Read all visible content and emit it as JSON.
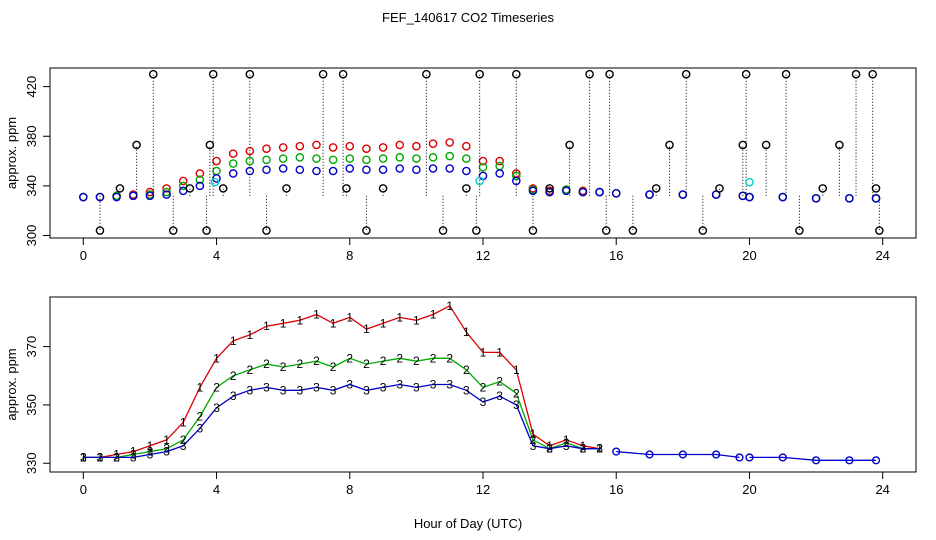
{
  "title": "FEF_140617  CO2 Timeseries",
  "xlabel": "Hour of Day (UTC)",
  "colors": {
    "s1": "#dd0000",
    "s2": "#00aa00",
    "s3": "#0000cc",
    "cyan": "#00cccc",
    "black": "#000000"
  },
  "chart_data": [
    {
      "type": "scatter",
      "ylabel": "approx. ppm",
      "xlim": [
        -1,
        25
      ],
      "ylim": [
        298,
        435
      ],
      "xticks": [
        0,
        4,
        8,
        12,
        16,
        20,
        24
      ],
      "yticks": [
        300,
        340,
        380,
        420
      ],
      "grid": false,
      "series": [
        {
          "marker": "circle",
          "color": "#dd0000",
          "x": [
            0,
            0.5,
            1,
            1.5,
            2,
            2.5,
            3,
            3.5,
            4,
            4.5,
            5,
            5.5,
            6,
            6.5,
            7,
            7.5,
            8,
            8.5,
            9,
            9.5,
            10,
            10.5,
            11,
            11.5,
            12,
            12.5,
            13,
            13.5,
            14,
            14.5,
            15,
            15.5,
            16,
            17,
            18,
            19,
            19.8,
            20,
            21,
            22,
            23,
            23.8
          ],
          "y": [
            331,
            331,
            332,
            333,
            335,
            338,
            344,
            350,
            360,
            366,
            368,
            370,
            371,
            372,
            373,
            371,
            372,
            370,
            371,
            373,
            372,
            374,
            375,
            372,
            360,
            360,
            350,
            338,
            336,
            337,
            336,
            335,
            334,
            333,
            333,
            333,
            332,
            331,
            331,
            330,
            330,
            330
          ]
        },
        {
          "marker": "circle",
          "color": "#00aa00",
          "x": [
            0,
            0.5,
            1,
            1.5,
            2,
            2.5,
            3,
            3.5,
            4,
            4.5,
            5,
            5.5,
            6,
            6.5,
            7,
            7.5,
            8,
            8.5,
            9,
            9.5,
            10,
            10.5,
            11,
            11.5,
            12,
            12.5,
            13,
            13.5,
            14,
            14.5,
            15,
            15.5,
            16,
            17,
            18,
            19,
            19.8,
            20,
            21,
            22,
            23,
            23.8
          ],
          "y": [
            331,
            331,
            332,
            332,
            333,
            335,
            340,
            345,
            352,
            358,
            360,
            361,
            362,
            363,
            362,
            361,
            362,
            361,
            362,
            363,
            362,
            363,
            364,
            362,
            355,
            356,
            348,
            337,
            335,
            337,
            335,
            335,
            334,
            333,
            333,
            333,
            332,
            331,
            331,
            330,
            330,
            330
          ]
        },
        {
          "marker": "circle",
          "color": "#0000cc",
          "x": [
            0,
            0.5,
            1,
            1.5,
            2,
            2.5,
            3,
            3.5,
            4,
            4.5,
            5,
            5.5,
            6,
            6.5,
            7,
            7.5,
            8,
            8.5,
            9,
            9.5,
            10,
            10.5,
            11,
            11.5,
            12,
            12.5,
            13,
            13.5,
            14,
            14.5,
            15,
            15.5,
            16,
            17,
            18,
            19,
            19.8,
            20,
            21,
            22,
            23,
            23.8
          ],
          "y": [
            331,
            331,
            331,
            332,
            332,
            333,
            336,
            340,
            346,
            350,
            352,
            353,
            354,
            353,
            352,
            352,
            354,
            353,
            353,
            354,
            353,
            354,
            354,
            352,
            348,
            350,
            344,
            336,
            335,
            336,
            335,
            335,
            334,
            333,
            333,
            333,
            332,
            331,
            331,
            330,
            330,
            330
          ]
        },
        {
          "marker": "circle",
          "color": "#000000",
          "x": [
            0.5,
            1.1,
            1.6,
            2.1,
            2.7,
            3.2,
            3.7,
            3.8,
            3.9,
            4.2,
            5.0,
            5.5,
            6.1,
            7.2,
            7.8,
            7.9,
            8.5,
            9.0,
            10.3,
            10.8,
            11.5,
            11.8,
            11.9,
            13.0,
            13.5,
            14.0,
            14.6,
            15.2,
            15.7,
            15.8,
            16.5,
            17.2,
            17.6,
            18.1,
            18.6,
            19.1,
            19.8,
            19.9,
            20.5,
            21.1,
            21.5,
            22.2,
            22.7,
            23.2,
            23.7,
            23.8,
            23.9
          ],
          "y": [
            304,
            338,
            373,
            430,
            304,
            338,
            304,
            373,
            430,
            338,
            430,
            304,
            338,
            430,
            430,
            338,
            304,
            338,
            430,
            304,
            338,
            304,
            430,
            430,
            304,
            338,
            373,
            430,
            304,
            430,
            304,
            338,
            373,
            430,
            304,
            338,
            373,
            430,
            373,
            430,
            304,
            338,
            373,
            430,
            430,
            338,
            304
          ]
        },
        {
          "marker": "circle",
          "color": "#00cccc",
          "x": [
            3.95,
            11.9,
            20.0
          ],
          "y": [
            343,
            344,
            343
          ]
        }
      ]
    },
    {
      "type": "line",
      "ylabel": "approx. ppm",
      "xlim": [
        -1,
        25
      ],
      "ylim": [
        327,
        387
      ],
      "xticks": [
        0,
        4,
        8,
        12,
        16,
        20,
        24
      ],
      "yticks": [
        330,
        350,
        370
      ],
      "grid": false,
      "series": [
        {
          "label_char": "1",
          "color": "#dd0000",
          "x": [
            0,
            0.5,
            1,
            1.5,
            2,
            2.5,
            3,
            3.5,
            4,
            4.5,
            5,
            5.5,
            6,
            6.5,
            7,
            7.5,
            8,
            8.5,
            9,
            9.5,
            10,
            10.5,
            11,
            11.5,
            12,
            12.5,
            13,
            13.5,
            14,
            14.5,
            15,
            15.5
          ],
          "y": [
            332,
            332,
            333,
            334,
            336,
            338,
            344,
            356,
            366,
            372,
            374,
            377,
            378,
            379,
            381,
            378,
            380,
            376,
            378,
            380,
            379,
            381,
            384,
            375,
            368,
            368,
            362,
            340,
            336,
            338,
            336,
            335
          ]
        },
        {
          "label_char": "2",
          "color": "#00aa00",
          "x": [
            0,
            0.5,
            1,
            1.5,
            2,
            2.5,
            3,
            3.5,
            4,
            4.5,
            5,
            5.5,
            6,
            6.5,
            7,
            7.5,
            8,
            8.5,
            9,
            9.5,
            10,
            10.5,
            11,
            11.5,
            12,
            12.5,
            13,
            13.5,
            14,
            14.5,
            15,
            15.5
          ],
          "y": [
            332,
            332,
            332,
            333,
            334,
            335,
            338,
            346,
            356,
            360,
            362,
            364,
            363,
            364,
            365,
            363,
            366,
            364,
            365,
            366,
            365,
            366,
            366,
            362,
            356,
            358,
            354,
            338,
            335,
            337,
            335,
            335
          ]
        },
        {
          "label_char": "3",
          "color": "#0000cc",
          "x": [
            0,
            0.5,
            1,
            1.5,
            2,
            2.5,
            3,
            3.5,
            4,
            4.5,
            5,
            5.5,
            6,
            6.5,
            7,
            7.5,
            8,
            8.5,
            9,
            9.5,
            10,
            10.5,
            11,
            11.5,
            12,
            12.5,
            13,
            13.5,
            14,
            14.5,
            15,
            15.5
          ],
          "y": [
            332,
            332,
            332,
            332,
            333,
            334,
            336,
            342,
            349,
            353,
            355,
            356,
            355,
            355,
            356,
            355,
            357,
            355,
            356,
            357,
            356,
            357,
            357,
            355,
            351,
            353,
            350,
            336,
            335,
            336,
            335,
            335
          ]
        },
        {
          "label_char": "",
          "color": "#0000cc",
          "x": [
            16,
            17,
            18,
            19,
            19.7
          ],
          "y": [
            334,
            333,
            333,
            333,
            332
          ]
        },
        {
          "label_char": "",
          "color": "#0000cc",
          "x": [
            20,
            21,
            22,
            23,
            23.8
          ],
          "y": [
            332,
            332,
            331,
            331,
            331
          ]
        }
      ]
    }
  ]
}
